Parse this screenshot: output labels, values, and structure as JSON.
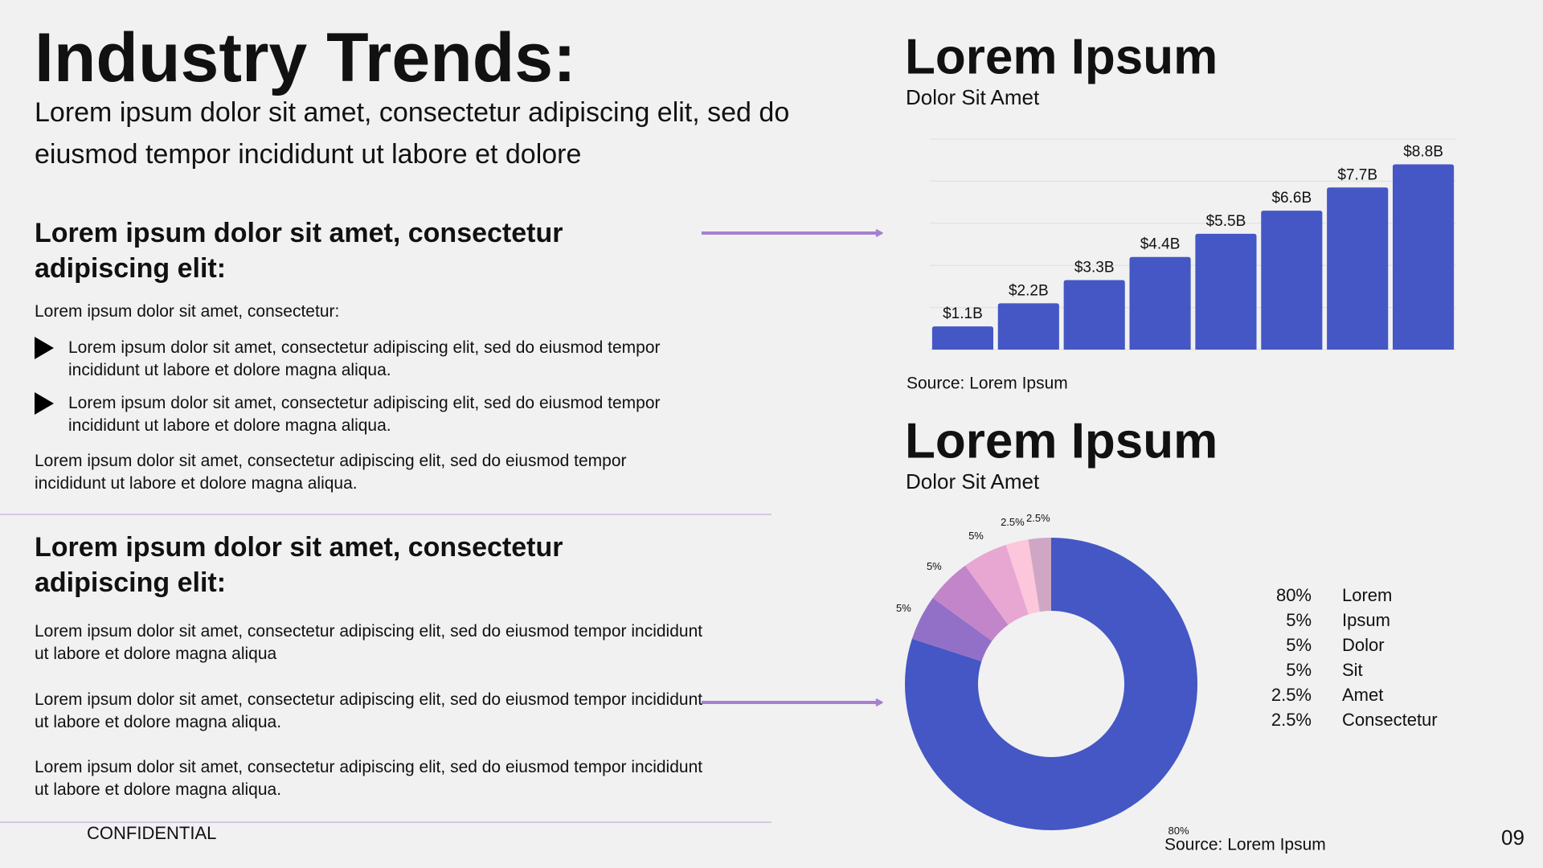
{
  "title": "Industry Trends:",
  "subtitle": "Lorem ipsum dolor sit amet, consectetur adipiscing elit, sed do eiusmod tempor incididunt ut labore et dolore",
  "section1": {
    "heading": "Lorem ipsum dolor sit amet, consectetur adipiscing elit:",
    "intro": "Lorem ipsum dolor sit amet, consectetur:",
    "bullets": [
      "Lorem ipsum dolor sit amet, consectetur adipiscing elit, sed do eiusmod tempor incididunt ut labore et dolore magna aliqua.",
      "Lorem ipsum dolor sit amet, consectetur adipiscing elit, sed do eiusmod tempor incididunt ut labore et dolore magna aliqua."
    ],
    "paragraph": "Lorem ipsum dolor sit amet, consectetur adipiscing elit, sed do eiusmod tempor incididunt ut labore et dolore magna aliqua."
  },
  "section2": {
    "heading": "Lorem ipsum dolor sit amet, consectetur adipiscing elit:",
    "paragraphs": [
      "Lorem ipsum dolor sit amet, consectetur adipiscing elit, sed do eiusmod tempor incididunt ut labore et dolore magna aliqua",
      "Lorem ipsum dolor sit amet, consectetur adipiscing elit, sed do eiusmod tempor incididunt ut labore et dolore magna aliqua.",
      "Lorem ipsum dolor sit amet, consectetur adipiscing elit, sed do eiusmod tempor incididunt ut labore et dolore magna aliqua."
    ]
  },
  "footer": {
    "label": "CONFIDENTIAL",
    "page": "09"
  },
  "chart_data": [
    {
      "type": "bar",
      "title": "Lorem Ipsum",
      "subtitle": "Dolor Sit Amet",
      "source": "Source: Lorem Ipsum",
      "categories": [
        null,
        null,
        null,
        null,
        null,
        null,
        null,
        null
      ],
      "values": [
        1.1,
        2.2,
        3.3,
        4.4,
        5.5,
        6.6,
        7.7,
        8.8
      ],
      "value_labels": [
        "$1.1B",
        "$2.2B",
        "$3.3B",
        "$4.4B",
        "$5.5B",
        "$6.6B",
        "$7.7B",
        "$8.8B"
      ],
      "color": "#4457c5",
      "ylim": [
        0,
        10
      ],
      "yticks": [
        0,
        2,
        4,
        6,
        8,
        10
      ],
      "grid": true,
      "tick_labels": false
    },
    {
      "type": "pie",
      "title": "Lorem Ipsum",
      "subtitle": "Dolor Sit Amet",
      "source": "Source: Lorem Ipsum",
      "categories": [
        "Lorem",
        "Ipsum",
        "Dolor",
        "Sit",
        "Amet",
        "Consectetur"
      ],
      "values": [
        80,
        5,
        5,
        5,
        2.5,
        2.5
      ],
      "value_labels": [
        "80%",
        "5%",
        "5%",
        "5%",
        "2.5%",
        "2.5%"
      ],
      "colors": [
        "#4457c5",
        "#9370c8",
        "#c385c9",
        "#e7a7d2",
        "#fcc7da",
        "#cfa7c4"
      ],
      "donut": true,
      "legend": "right"
    }
  ]
}
